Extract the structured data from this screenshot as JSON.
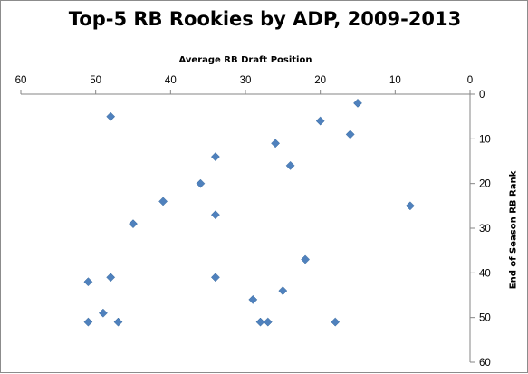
{
  "chart_data": {
    "type": "scatter",
    "title": "Top-5 RB Rookies by ADP, 2009-2013",
    "xlabel": "Average RB Draft Position",
    "ylabel": "End of Season RB Rank",
    "xlim": [
      60,
      0
    ],
    "ylim": [
      60,
      0
    ],
    "x_axis_position": "top",
    "y_axis_position": "right",
    "x_reversed": true,
    "y_reversed": true,
    "grid": false,
    "legend": "none",
    "x_ticks": [
      "60",
      "50",
      "40",
      "30",
      "20",
      "10",
      "0"
    ],
    "y_ticks": [
      "0",
      "10",
      "20",
      "30",
      "40",
      "50",
      "60"
    ],
    "marker": "diamond",
    "color": "#4f81bd",
    "points": [
      {
        "x": 15,
        "y": 2
      },
      {
        "x": 48,
        "y": 5
      },
      {
        "x": 20,
        "y": 6
      },
      {
        "x": 16,
        "y": 9
      },
      {
        "x": 26,
        "y": 11
      },
      {
        "x": 34,
        "y": 14
      },
      {
        "x": 24,
        "y": 16
      },
      {
        "x": 36,
        "y": 20
      },
      {
        "x": 41,
        "y": 24
      },
      {
        "x": 8,
        "y": 25
      },
      {
        "x": 34,
        "y": 27
      },
      {
        "x": 45,
        "y": 29
      },
      {
        "x": 22,
        "y": 37
      },
      {
        "x": 48,
        "y": 41
      },
      {
        "x": 34,
        "y": 41
      },
      {
        "x": 51,
        "y": 42
      },
      {
        "x": 25,
        "y": 44
      },
      {
        "x": 29,
        "y": 46
      },
      {
        "x": 49,
        "y": 49
      },
      {
        "x": 51,
        "y": 51
      },
      {
        "x": 47,
        "y": 51
      },
      {
        "x": 28,
        "y": 51
      },
      {
        "x": 27,
        "y": 51
      },
      {
        "x": 18,
        "y": 51
      }
    ]
  }
}
